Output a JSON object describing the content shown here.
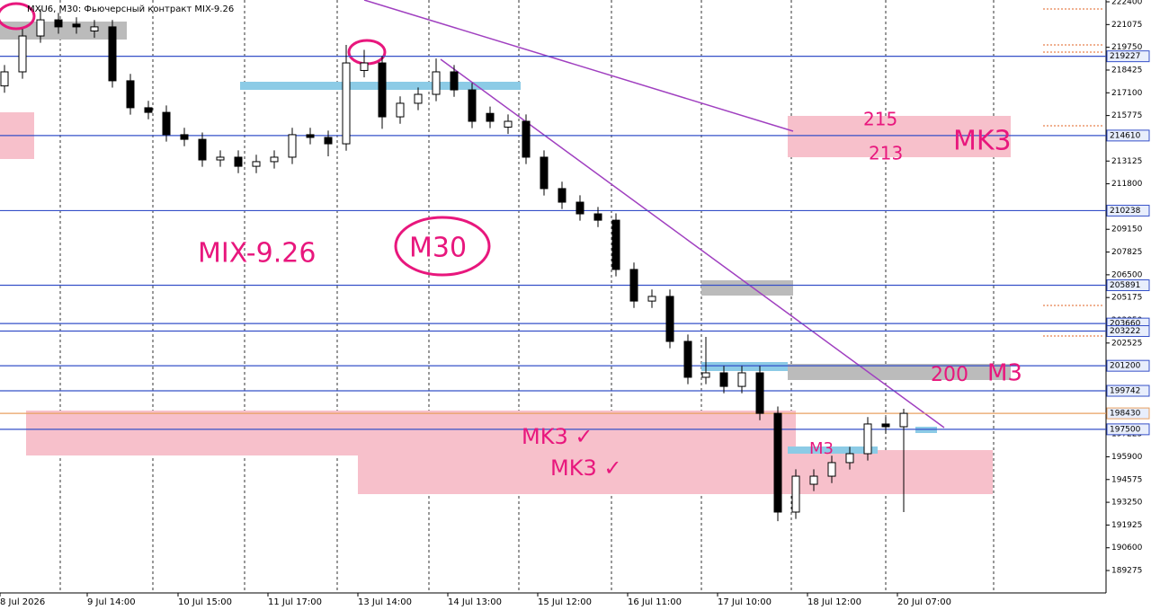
{
  "chart_data": {
    "type": "candlestick",
    "header": "MXU6, M30:  Фьючерсный контракт MIX-9.26",
    "ylim": [
      187970,
      222505
    ],
    "yticks": [
      222400,
      221075,
      219750,
      218425,
      217100,
      215775,
      213125,
      211800,
      209150,
      207825,
      206500,
      205175,
      203850,
      202525,
      198550,
      197225,
      195900,
      194575,
      193250,
      191925,
      190600,
      189275
    ],
    "xlim": [
      -0.25,
      61.25
    ],
    "xticks": [
      {
        "value": -0.25,
        "label": "8 Jul 2026"
      },
      {
        "value": 4.6,
        "label": "9 Jul 14:00"
      },
      {
        "value": 9.65,
        "label": "10 Jul 15:00"
      },
      {
        "value": 14.65,
        "label": "11 Jul 17:00"
      },
      {
        "value": 19.65,
        "label": "13 Jul 14:00"
      },
      {
        "value": 24.65,
        "label": "14 Jul 13:00"
      },
      {
        "value": 29.65,
        "label": "15 Jul 12:00"
      },
      {
        "value": 34.65,
        "label": "16 Jul 11:00"
      },
      {
        "value": 39.65,
        "label": "17 Jul 10:00"
      },
      {
        "value": 44.65,
        "label": "18 Jul 12:00"
      },
      {
        "value": 49.65,
        "label": "20 Jul 07:00"
      }
    ],
    "open": [
      217500,
      218320,
      220410,
      221350,
      221100,
      220700,
      220940,
      217800,
      216230,
      215960,
      214660,
      214390,
      213190,
      213350,
      212820,
      213090,
      213350,
      214660,
      214500,
      214130,
      218400,
      218840,
      215700,
      216490,
      217010,
      218320,
      217270,
      215900,
      215100,
      215440,
      213350,
      211520,
      210730,
      210050,
      209680,
      206810,
      204970,
      205240,
      202620,
      200530,
      200790,
      200000,
      200790,
      198430,
      192680,
      194300,
      194770,
      195560,
      196080,
      197810,
      197650
    ],
    "high": [
      218720,
      220810,
      221980,
      221750,
      221500,
      221340,
      221340,
      218200,
      216630,
      216360,
      215060,
      214790,
      213750,
      213750,
      213490,
      213750,
      215060,
      215060,
      214900,
      219890,
      219600,
      219240,
      216890,
      217410,
      219100,
      218720,
      217670,
      216300,
      215840,
      215840,
      213750,
      211920,
      211130,
      210450,
      210080,
      207210,
      205640,
      205640,
      203020,
      202880,
      201190,
      201190,
      201190,
      198830,
      195170,
      195170,
      195960,
      196480,
      198210,
      198210,
      198700
    ],
    "low": [
      217100,
      217920,
      220010,
      220540,
      220540,
      220300,
      217400,
      215830,
      215560,
      214260,
      213990,
      212790,
      212790,
      212420,
      212420,
      212690,
      212950,
      214100,
      213400,
      213730,
      218000,
      215000,
      215300,
      216090,
      216610,
      216870,
      215040,
      215040,
      214700,
      212950,
      211120,
      210330,
      209650,
      209280,
      206410,
      204570,
      204570,
      202220,
      200130,
      200130,
      199600,
      199600,
      198030,
      192150,
      192280,
      193900,
      194370,
      195160,
      195680,
      197250,
      192680
    ],
    "close": [
      218320,
      220410,
      221350,
      220940,
      220940,
      220940,
      217800,
      216230,
      215960,
      214660,
      214390,
      213190,
      213350,
      212820,
      213090,
      213350,
      214660,
      214500,
      214130,
      218840,
      218840,
      215700,
      216490,
      217010,
      218320,
      217270,
      215440,
      215440,
      215440,
      213350,
      211520,
      210730,
      210050,
      209680,
      206810,
      204970,
      205240,
      202620,
      200530,
      200790,
      200000,
      200790,
      198430,
      192680,
      194770,
      194770,
      195560,
      196080,
      197810,
      197650,
      198430
    ],
    "levels": [
      219227,
      214610,
      210238,
      205891,
      203660,
      203222,
      201200,
      199742,
      197500
    ],
    "level_color": "#3550c8",
    "current_price": 198430,
    "current_color": "#e8a060",
    "annotations": [
      "MIX-9.26",
      "M30",
      "215",
      "213",
      "MK3",
      "200",
      "M3",
      "MK3 ✓",
      "MK3 ✓",
      "M3"
    ],
    "annotation_color": "#e8177d"
  }
}
